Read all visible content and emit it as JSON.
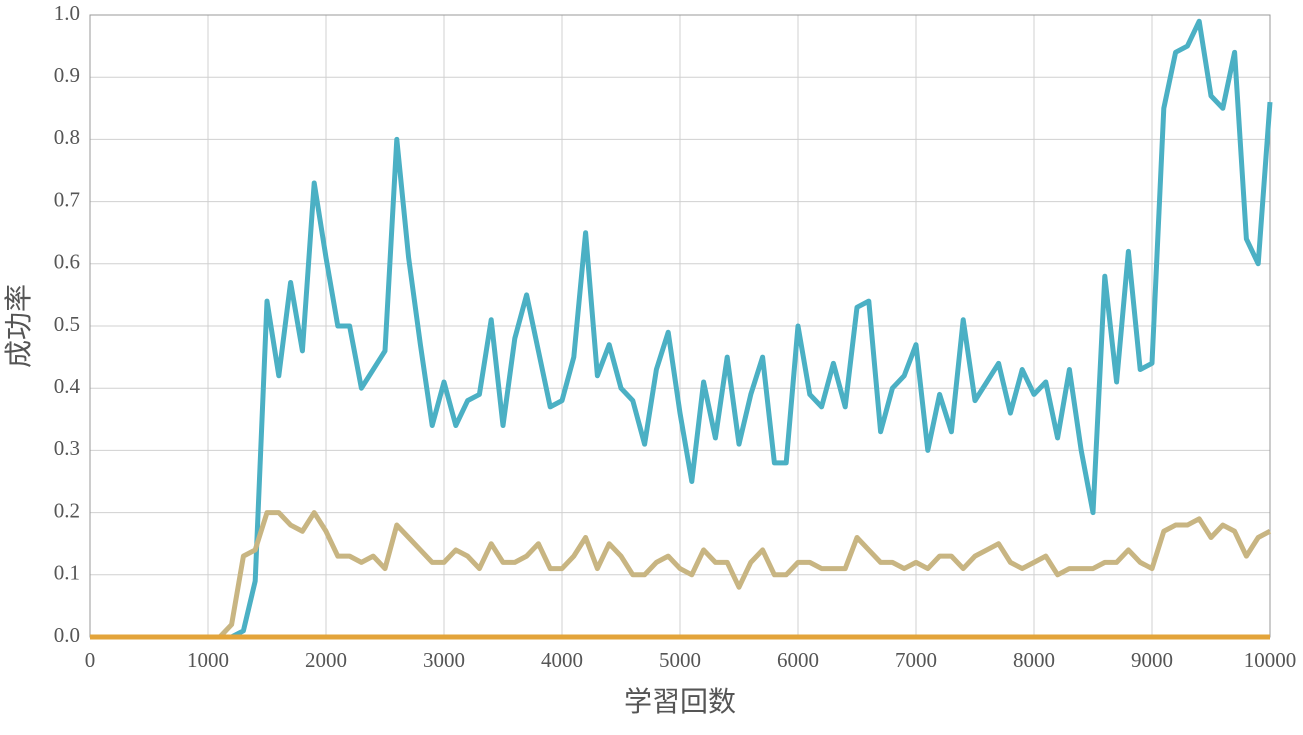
{
  "chart_data": {
    "type": "line",
    "xlabel": "学習回数",
    "ylabel": "成功率",
    "x": [
      0,
      100,
      200,
      300,
      400,
      500,
      600,
      700,
      800,
      900,
      1000,
      1100,
      1200,
      1300,
      1400,
      1500,
      1600,
      1700,
      1800,
      1900,
      2000,
      2100,
      2200,
      2300,
      2400,
      2500,
      2600,
      2700,
      2800,
      2900,
      3000,
      3100,
      3200,
      3300,
      3400,
      3500,
      3600,
      3700,
      3800,
      3900,
      4000,
      4100,
      4200,
      4300,
      4400,
      4500,
      4600,
      4700,
      4800,
      4900,
      5000,
      5100,
      5200,
      5300,
      5400,
      5500,
      5600,
      5700,
      5800,
      5900,
      6000,
      6100,
      6200,
      6300,
      6400,
      6500,
      6600,
      6700,
      6800,
      6900,
      7000,
      7100,
      7200,
      7300,
      7400,
      7500,
      7600,
      7700,
      7800,
      7900,
      8000,
      8100,
      8200,
      8300,
      8400,
      8500,
      8600,
      8700,
      8800,
      8900,
      9000,
      9100,
      9200,
      9300,
      9400,
      9500,
      9600,
      9700,
      9800,
      9900,
      10000
    ],
    "series": [
      {
        "color": "#4bb0c4",
        "values": [
          0,
          0,
          0,
          0,
          0,
          0,
          0,
          0,
          0,
          0,
          0,
          0,
          0,
          0.01,
          0.09,
          0.54,
          0.42,
          0.57,
          0.46,
          0.73,
          0.61,
          0.5,
          0.5,
          0.4,
          0.43,
          0.46,
          0.8,
          0.61,
          0.47,
          0.34,
          0.41,
          0.34,
          0.38,
          0.39,
          0.51,
          0.34,
          0.48,
          0.55,
          0.46,
          0.37,
          0.38,
          0.45,
          0.65,
          0.42,
          0.47,
          0.4,
          0.38,
          0.31,
          0.43,
          0.49,
          0.36,
          0.25,
          0.41,
          0.32,
          0.45,
          0.31,
          0.39,
          0.45,
          0.28,
          0.28,
          0.5,
          0.39,
          0.37,
          0.44,
          0.37,
          0.53,
          0.54,
          0.33,
          0.4,
          0.42,
          0.47,
          0.3,
          0.39,
          0.33,
          0.51,
          0.38,
          0.41,
          0.44,
          0.36,
          0.43,
          0.39,
          0.41,
          0.32,
          0.43,
          0.3,
          0.2,
          0.58,
          0.41,
          0.62,
          0.43,
          0.44,
          0.85,
          0.94,
          0.95,
          0.99,
          0.87,
          0.85,
          0.94,
          0.64,
          0.6,
          0.86
        ]
      },
      {
        "color": "#c8b582",
        "values": [
          0,
          0,
          0,
          0,
          0,
          0,
          0,
          0,
          0,
          0,
          0,
          0,
          0.02,
          0.13,
          0.14,
          0.2,
          0.2,
          0.18,
          0.17,
          0.2,
          0.17,
          0.13,
          0.13,
          0.12,
          0.13,
          0.11,
          0.18,
          0.16,
          0.14,
          0.12,
          0.12,
          0.14,
          0.13,
          0.11,
          0.15,
          0.12,
          0.12,
          0.13,
          0.15,
          0.11,
          0.11,
          0.13,
          0.16,
          0.11,
          0.15,
          0.13,
          0.1,
          0.1,
          0.12,
          0.13,
          0.11,
          0.1,
          0.14,
          0.12,
          0.12,
          0.08,
          0.12,
          0.14,
          0.1,
          0.1,
          0.12,
          0.12,
          0.11,
          0.11,
          0.11,
          0.16,
          0.14,
          0.12,
          0.12,
          0.11,
          0.12,
          0.11,
          0.13,
          0.13,
          0.11,
          0.13,
          0.14,
          0.15,
          0.12,
          0.11,
          0.12,
          0.13,
          0.1,
          0.11,
          0.11,
          0.11,
          0.12,
          0.12,
          0.14,
          0.12,
          0.11,
          0.17,
          0.18,
          0.18,
          0.19,
          0.16,
          0.18,
          0.17,
          0.13,
          0.16,
          0.17
        ]
      },
      {
        "color": "#e3a43a",
        "values": [
          0,
          0,
          0,
          0,
          0,
          0,
          0,
          0,
          0,
          0,
          0,
          0,
          0,
          0,
          0,
          0,
          0,
          0,
          0,
          0,
          0,
          0,
          0,
          0,
          0,
          0,
          0,
          0,
          0,
          0,
          0,
          0,
          0,
          0,
          0,
          0,
          0,
          0,
          0,
          0,
          0,
          0,
          0,
          0,
          0,
          0,
          0,
          0,
          0,
          0,
          0,
          0,
          0,
          0,
          0,
          0,
          0,
          0,
          0,
          0,
          0,
          0,
          0,
          0,
          0,
          0,
          0,
          0,
          0,
          0,
          0,
          0,
          0,
          0,
          0,
          0,
          0,
          0,
          0,
          0,
          0,
          0,
          0,
          0,
          0,
          0,
          0,
          0,
          0,
          0,
          0,
          0,
          0,
          0,
          0,
          0,
          0,
          0,
          0,
          0,
          0
        ]
      }
    ],
    "xlim": [
      0,
      10000
    ],
    "xticks": [
      0,
      1000,
      2000,
      3000,
      4000,
      5000,
      6000,
      7000,
      8000,
      9000,
      10000
    ],
    "ylim": [
      0,
      1
    ],
    "yticks": [
      {
        "value": 0,
        "label": "0.0"
      },
      0.1,
      0.2,
      0.3,
      0.4,
      0.5,
      0.6,
      0.7,
      0.8,
      0.9,
      {
        "value": 1,
        "label": "1.0"
      }
    ],
    "grid": true
  }
}
